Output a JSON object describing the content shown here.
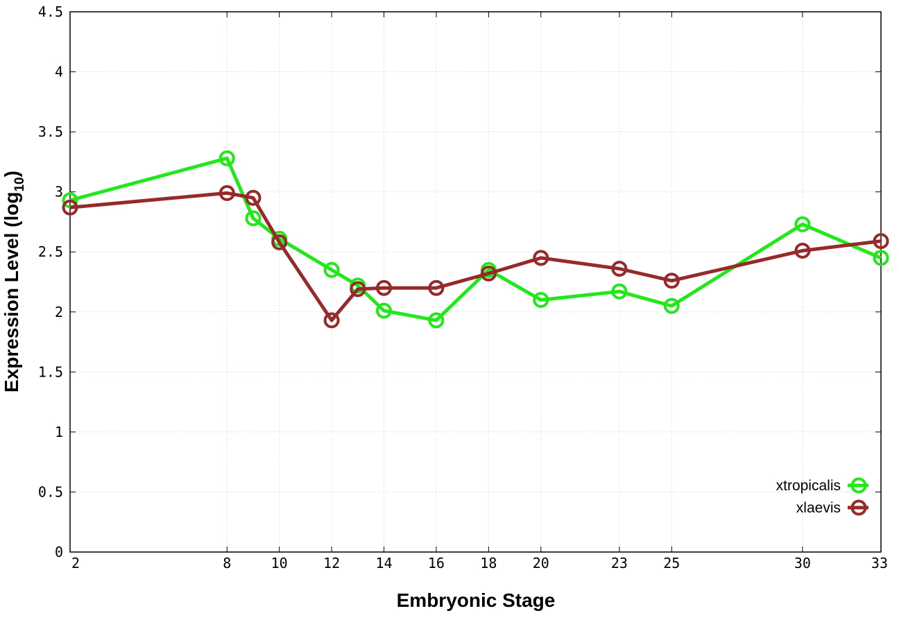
{
  "chart_data": {
    "type": "line",
    "title": "",
    "xlabel": "Embryonic Stage",
    "ylabel": "Expression Level (log",
    "ylabel_subscript": "10",
    "ylabel_close": ")",
    "x": [
      2,
      8,
      9,
      10,
      12,
      13,
      14,
      16,
      18,
      20,
      23,
      25,
      30,
      33
    ],
    "x_ticks": [
      2,
      8,
      10,
      12,
      14,
      16,
      18,
      20,
      23,
      25,
      30,
      33
    ],
    "x_tick_labels": [
      "2",
      "8",
      "10",
      "12",
      "14",
      "16",
      "18",
      "20",
      "23",
      "25",
      "30",
      "33"
    ],
    "xlim": [
      2,
      33
    ],
    "y_ticks": [
      0,
      0.5,
      1,
      1.5,
      2,
      2.5,
      3,
      3.5,
      4,
      4.5
    ],
    "y_tick_labels": [
      "0",
      "0.5",
      "1",
      "1.5",
      "2",
      "2.5",
      "3",
      "3.5",
      "4",
      "4.5"
    ],
    "ylim": [
      0,
      4.5
    ],
    "grid": true,
    "legend_position": "bottom-right",
    "series": [
      {
        "name": "xtropicalis",
        "color": "#22e81a",
        "marker": "open-circle",
        "values": [
          2.93,
          3.28,
          2.78,
          2.61,
          2.35,
          2.22,
          2.01,
          1.93,
          2.35,
          2.1,
          2.17,
          2.05,
          2.73,
          2.45
        ]
      },
      {
        "name": "xlaevis",
        "color": "#962a2a",
        "marker": "open-circle",
        "values": [
          2.87,
          2.99,
          2.95,
          2.58,
          1.93,
          2.19,
          2.2,
          2.2,
          2.32,
          2.45,
          2.36,
          2.26,
          2.51,
          2.59
        ]
      }
    ]
  }
}
